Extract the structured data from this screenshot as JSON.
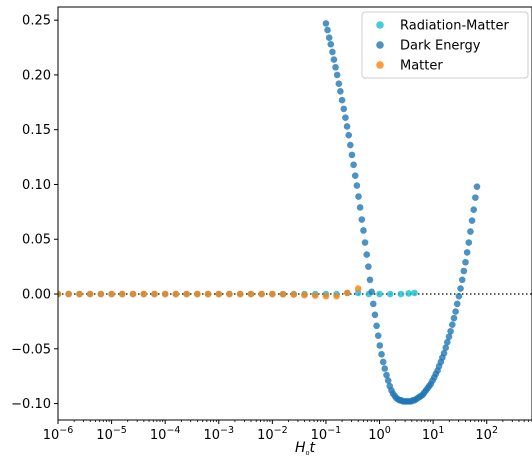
{
  "chart_data": {
    "type": "scatter",
    "title": "",
    "xlabel": "H₀t",
    "ylabel": "",
    "xscale": "log",
    "xlim": [
      1e-06,
      700
    ],
    "ylim": [
      -0.115,
      0.262
    ],
    "grid": false,
    "legend_position": "top-right",
    "reference_line": {
      "y": 0,
      "style": "dotted",
      "color": "#000000"
    },
    "y_ticks": [
      -0.1,
      -0.05,
      0.0,
      0.05,
      0.1,
      0.15,
      0.2,
      0.25
    ],
    "y_tick_labels": [
      "−0.10",
      "−0.05",
      "0.00",
      "0.05",
      "0.10",
      "0.15",
      "0.20",
      "0.25"
    ],
    "x_ticks": [
      1e-06,
      1e-05,
      0.0001,
      0.001,
      0.01,
      0.1,
      1,
      10,
      100
    ],
    "x_tick_labels": [
      {
        "base": "10",
        "exp": "−6"
      },
      {
        "base": "10",
        "exp": "−5"
      },
      {
        "base": "10",
        "exp": "−4"
      },
      {
        "base": "10",
        "exp": "−3"
      },
      {
        "base": "10",
        "exp": "−2"
      },
      {
        "base": "10",
        "exp": "−1"
      },
      {
        "base": "10",
        "exp": "0"
      },
      {
        "base": "10",
        "exp": "1"
      },
      {
        "base": "10",
        "exp": "2"
      }
    ],
    "series": [
      {
        "name": "Radiation-Matter",
        "color": "#17becf",
        "points": [
          [
            1e-06,
            0
          ],
          [
            1.58e-06,
            0
          ],
          [
            2.51e-06,
            0
          ],
          [
            3.98e-06,
            0
          ],
          [
            6.31e-06,
            0
          ],
          [
            1e-05,
            0
          ],
          [
            1.58e-05,
            0
          ],
          [
            2.51e-05,
            0
          ],
          [
            3.98e-05,
            0
          ],
          [
            6.31e-05,
            0
          ],
          [
            0.0001,
            0
          ],
          [
            0.000158,
            0
          ],
          [
            0.000251,
            0
          ],
          [
            0.000398,
            0
          ],
          [
            0.000631,
            0
          ],
          [
            0.001,
            0
          ],
          [
            0.00158,
            0
          ],
          [
            0.00251,
            0
          ],
          [
            0.00398,
            0
          ],
          [
            0.00631,
            0
          ],
          [
            0.01,
            0
          ],
          [
            0.0158,
            0
          ],
          [
            0.0251,
            0
          ],
          [
            0.0398,
            0
          ],
          [
            0.0631,
            0
          ],
          [
            0.1,
            0
          ],
          [
            0.158,
            0
          ],
          [
            0.251,
            0.001
          ],
          [
            0.398,
            0.001
          ],
          [
            0.631,
            0.0
          ],
          [
            1.0,
            0.0
          ],
          [
            1.58,
            0.0
          ],
          [
            2.51,
            0.0
          ],
          [
            3.5,
            0.0005
          ],
          [
            4.5,
            0.001
          ]
        ]
      },
      {
        "name": "Dark Energy",
        "color": "#1f77b4",
        "points": [
          [
            0.1,
            0.247
          ],
          [
            0.107,
            0.241
          ],
          [
            0.115,
            0.234
          ],
          [
            0.123,
            0.228
          ],
          [
            0.132,
            0.221
          ],
          [
            0.141,
            0.214
          ],
          [
            0.151,
            0.207
          ],
          [
            0.162,
            0.2
          ],
          [
            0.174,
            0.192
          ],
          [
            0.186,
            0.185
          ],
          [
            0.2,
            0.177
          ],
          [
            0.215,
            0.169
          ],
          [
            0.231,
            0.161
          ],
          [
            0.248,
            0.153
          ],
          [
            0.266,
            0.145
          ],
          [
            0.285,
            0.136
          ],
          [
            0.306,
            0.127
          ],
          [
            0.328,
            0.118
          ],
          [
            0.352,
            0.108
          ],
          [
            0.378,
            0.099
          ],
          [
            0.405,
            0.089
          ],
          [
            0.435,
            0.079
          ],
          [
            0.467,
            0.068
          ],
          [
            0.501,
            0.058
          ],
          [
            0.537,
            0.047
          ],
          [
            0.577,
            0.036
          ],
          [
            0.619,
            0.025
          ],
          [
            0.664,
            0.013
          ],
          [
            0.713,
            0.002
          ],
          [
            0.765,
            -0.009
          ],
          [
            0.821,
            -0.019
          ],
          [
            0.881,
            -0.029
          ],
          [
            0.945,
            -0.038
          ],
          [
            1.01,
            -0.047
          ],
          [
            1.09,
            -0.055
          ],
          [
            1.17,
            -0.062
          ],
          [
            1.25,
            -0.068
          ],
          [
            1.35,
            -0.074
          ],
          [
            1.45,
            -0.079
          ],
          [
            1.55,
            -0.084
          ],
          [
            1.67,
            -0.088
          ],
          [
            1.79,
            -0.091
          ],
          [
            1.92,
            -0.093
          ],
          [
            2.06,
            -0.095
          ],
          [
            2.21,
            -0.096
          ],
          [
            2.37,
            -0.097
          ],
          [
            2.55,
            -0.097
          ],
          [
            2.73,
            -0.098
          ],
          [
            2.93,
            -0.098
          ],
          [
            3.14,
            -0.098
          ],
          [
            3.37,
            -0.098
          ],
          [
            3.62,
            -0.098
          ],
          [
            3.89,
            -0.098
          ],
          [
            4.17,
            -0.097
          ],
          [
            4.48,
            -0.097
          ],
          [
            4.81,
            -0.096
          ],
          [
            5.16,
            -0.095
          ],
          [
            5.54,
            -0.094
          ],
          [
            5.94,
            -0.093
          ],
          [
            6.38,
            -0.092
          ],
          [
            6.84,
            -0.09
          ],
          [
            7.35,
            -0.088
          ],
          [
            7.88,
            -0.086
          ],
          [
            8.46,
            -0.084
          ],
          [
            9.08,
            -0.082
          ],
          [
            9.75,
            -0.079
          ],
          [
            10.5,
            -0.076
          ],
          [
            11.2,
            -0.073
          ],
          [
            12.1,
            -0.07
          ],
          [
            12.9,
            -0.066
          ],
          [
            13.9,
            -0.062
          ],
          [
            14.9,
            -0.058
          ],
          [
            16.0,
            -0.054
          ],
          [
            17.2,
            -0.049
          ],
          [
            18.4,
            -0.044
          ],
          [
            19.8,
            -0.039
          ],
          [
            21.2,
            -0.034
          ],
          [
            22.8,
            -0.028
          ],
          [
            24.5,
            -0.022
          ],
          [
            26.3,
            -0.016
          ],
          [
            28.2,
            -0.009
          ],
          [
            30.3,
            -0.002
          ],
          [
            32.5,
            0.005
          ],
          [
            34.9,
            0.013
          ],
          [
            37.4,
            0.021
          ],
          [
            40.2,
            0.029
          ],
          [
            43.1,
            0.038
          ],
          [
            46.3,
            0.047
          ],
          [
            49.7,
            0.057
          ],
          [
            53.3,
            0.067
          ],
          [
            57.2,
            0.077
          ],
          [
            61.4,
            0.088
          ],
          [
            65.9,
            0.098
          ]
        ]
      },
      {
        "name": "Matter",
        "color": "#ff7f0e",
        "points": [
          [
            1e-06,
            0
          ],
          [
            1.58e-06,
            0
          ],
          [
            2.51e-06,
            0
          ],
          [
            3.98e-06,
            0
          ],
          [
            6.31e-06,
            0
          ],
          [
            1e-05,
            0
          ],
          [
            1.58e-05,
            0
          ],
          [
            2.51e-05,
            0
          ],
          [
            3.98e-05,
            0
          ],
          [
            6.31e-05,
            0
          ],
          [
            0.0001,
            0
          ],
          [
            0.000158,
            0
          ],
          [
            0.000251,
            0
          ],
          [
            0.000398,
            0
          ],
          [
            0.000631,
            0
          ],
          [
            0.001,
            0
          ],
          [
            0.00158,
            0
          ],
          [
            0.00251,
            0
          ],
          [
            0.00398,
            0
          ],
          [
            0.00631,
            0
          ],
          [
            0.01,
            0
          ],
          [
            0.0158,
            -0.0003
          ],
          [
            0.0251,
            -0.0005
          ],
          [
            0.0398,
            -0.001
          ],
          [
            0.0631,
            -0.0015
          ],
          [
            0.1,
            -0.002
          ],
          [
            0.158,
            -0.002
          ],
          [
            0.25,
            0.001
          ],
          [
            0.4,
            0.005
          ]
        ]
      }
    ]
  }
}
